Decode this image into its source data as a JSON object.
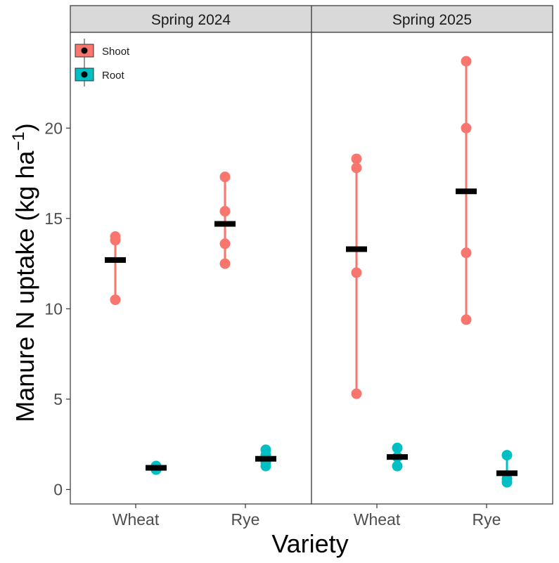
{
  "chart_data": {
    "type": "scatter",
    "xlabel": "Variety",
    "ylabel": "Manure N uptake (kg ha",
    "ylabel_superscript": "−1",
    "ylabel_close": ")",
    "ylim": [
      -0.8,
      25.3
    ],
    "yticks": [
      0,
      5,
      10,
      15,
      20
    ],
    "categories": [
      "Wheat",
      "Rye"
    ],
    "grid": false,
    "legend_position": "top-left",
    "series": [
      {
        "name": "Shoot",
        "color": "#F8766D"
      },
      {
        "name": "Root",
        "color": "#00BFC4"
      }
    ],
    "panels": [
      {
        "title": "Spring 2024",
        "groups": [
          {
            "category": "Wheat",
            "series": "Shoot",
            "points": [
              10.5,
              13.8,
              14.0
            ],
            "mean": 12.7
          },
          {
            "category": "Wheat",
            "series": "Root",
            "points": [
              1.1,
              1.2,
              1.3
            ],
            "mean": 1.2
          },
          {
            "category": "Rye",
            "series": "Shoot",
            "points": [
              12.5,
              13.6,
              15.4,
              17.3
            ],
            "mean": 14.7
          },
          {
            "category": "Rye",
            "series": "Root",
            "points": [
              1.3,
              1.5,
              1.9,
              2.2
            ],
            "mean": 1.7
          }
        ]
      },
      {
        "title": "Spring 2025",
        "groups": [
          {
            "category": "Wheat",
            "series": "Shoot",
            "points": [
              5.3,
              12.0,
              17.8,
              18.3
            ],
            "mean": 13.3
          },
          {
            "category": "Wheat",
            "series": "Root",
            "points": [
              1.3,
              1.8,
              2.3
            ],
            "mean": 1.8
          },
          {
            "category": "Rye",
            "series": "Shoot",
            "points": [
              9.4,
              13.1,
              20.0,
              23.7
            ],
            "mean": 16.5
          },
          {
            "category": "Rye",
            "series": "Root",
            "points": [
              0.4,
              0.6,
              1.9
            ],
            "mean": 0.9
          }
        ]
      }
    ]
  }
}
